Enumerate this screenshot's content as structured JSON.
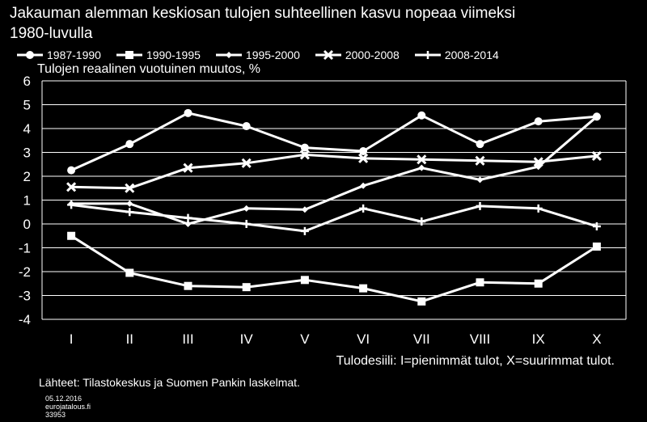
{
  "header": {
    "title_line1": "Jakauman alemman keskiosan tulojen suhteellinen kasvu nopeaa viimeksi",
    "title_line2": "1980-luvulla",
    "y_axis_title": "Tulojen reaalinen vuotuinen muutos, %",
    "x_axis_title": "Tulodesiili: I=pienimmät tulot, X=suurimmat tulot.",
    "source": "Lähteet: Tilastokeskus ja Suomen Pankin laskelmat.",
    "date": "05.12.2016",
    "site": "eurojatalous.fi",
    "code": "33953"
  },
  "colors": {
    "background": "#000000",
    "foreground": "#ffffff"
  },
  "chart_data": {
    "type": "line",
    "title": "Jakauman alemman keskiosan tulojen suhteellinen kasvu nopeaa viimeksi 1980-luvulla",
    "ylabel": "Tulojen reaalinen vuotuinen muutos, %",
    "xlabel": "Tulodesiili: I=pienimmät tulot, X=suurimmat tulot.",
    "categories": [
      "I",
      "II",
      "III",
      "IV",
      "V",
      "VI",
      "VII",
      "VIII",
      "IX",
      "X"
    ],
    "ylim": [
      -4,
      6
    ],
    "yticks": [
      6,
      5,
      4,
      3,
      2,
      1,
      0,
      -1,
      -2,
      -3,
      -4
    ],
    "grid": true,
    "legend_position": "top",
    "series": [
      {
        "name": "1987-1990",
        "marker": "circle",
        "values": [
          2.25,
          3.35,
          4.65,
          4.1,
          3.2,
          3.05,
          4.55,
          3.35,
          4.3,
          4.5
        ]
      },
      {
        "name": "1990-1995",
        "marker": "square",
        "values": [
          -0.5,
          -2.05,
          -2.6,
          -2.65,
          -2.35,
          -2.7,
          -3.25,
          -2.45,
          -2.5,
          -0.95
        ]
      },
      {
        "name": "1995-2000",
        "marker": "diamond",
        "values": [
          0.85,
          0.85,
          0.0,
          0.65,
          0.6,
          1.6,
          2.35,
          1.85,
          2.4,
          4.5
        ]
      },
      {
        "name": "2000-2008",
        "marker": "x",
        "values": [
          1.55,
          1.5,
          2.35,
          2.55,
          2.9,
          2.75,
          2.7,
          2.65,
          2.6,
          2.85
        ]
      },
      {
        "name": "2008-2014",
        "marker": "plus",
        "values": [
          0.8,
          0.5,
          0.25,
          0.0,
          -0.3,
          0.65,
          0.1,
          0.75,
          0.65,
          -0.1
        ]
      }
    ]
  }
}
